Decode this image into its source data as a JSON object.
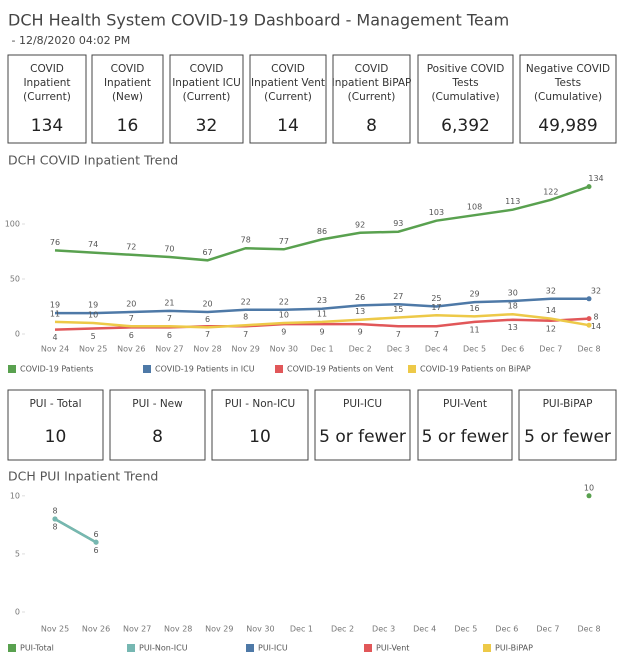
{
  "header": {
    "title": "DCH Health System COVID-19 Dashboard - Management Team",
    "subtitle": " - 12/8/2020 04:02 PM"
  },
  "kpis": [
    {
      "label": [
        "COVID",
        "Inpatient",
        "(Current)"
      ],
      "value": "134"
    },
    {
      "label": [
        "COVID",
        "Inpatient",
        "(New)"
      ],
      "value": "16"
    },
    {
      "label": [
        "COVID",
        "Inpatient ICU",
        "(Current)"
      ],
      "value": "32"
    },
    {
      "label": [
        "COVID",
        "Inpatient Vent",
        "(Current)"
      ],
      "value": "14"
    },
    {
      "label": [
        "COVID",
        "Inpatient BiPAP",
        "(Current)"
      ],
      "value": "8"
    },
    {
      "label": [
        "Positive COVID",
        "Tests",
        "(Cumulative)"
      ],
      "value": "6,392"
    },
    {
      "label": [
        "Negative COVID",
        "Tests",
        "(Cumulative)"
      ],
      "value": "49,989"
    }
  ],
  "pui_kpis": [
    {
      "label": "PUI - Total",
      "value": "10"
    },
    {
      "label": "PUI - New",
      "value": "8"
    },
    {
      "label": "PUI - Non-ICU",
      "value": "10"
    },
    {
      "label": "PUI-ICU",
      "value": "5 or fewer"
    },
    {
      "label": "PUI-Vent",
      "value": "5 or fewer"
    },
    {
      "label": "PUI-BiPAP",
      "value": "5 or fewer"
    }
  ],
  "chart_data": [
    {
      "type": "line",
      "title": "DCH COVID Inpatient Trend",
      "categories": [
        "Nov 24",
        "Nov 25",
        "Nov 26",
        "Nov 27",
        "Nov 28",
        "Nov 29",
        "Nov 30",
        "Dec 1",
        "Dec 2",
        "Dec 3",
        "Dec 4",
        "Dec 5",
        "Dec 6",
        "Dec 7",
        "Dec 8"
      ],
      "series": [
        {
          "name": "COVID-19 Patients",
          "color": "#59a14f",
          "values": [
            76,
            74,
            72,
            70,
            67,
            78,
            77,
            86,
            92,
            93,
            103,
            108,
            113,
            122,
            134
          ]
        },
        {
          "name": "COVID-19 Patients in ICU",
          "color": "#4e79a7",
          "values": [
            19,
            19,
            20,
            21,
            20,
            22,
            22,
            23,
            26,
            27,
            25,
            29,
            30,
            32,
            32
          ]
        },
        {
          "name": "COVID-19 Patients on Vent",
          "color": "#e15759",
          "values": [
            4,
            5,
            6,
            6,
            7,
            7,
            9,
            9,
            9,
            7,
            7,
            11,
            13,
            12,
            14
          ]
        },
        {
          "name": "COVID-19 Patients on BiPAP",
          "color": "#edc948",
          "values": [
            11,
            10,
            7,
            7,
            6,
            8,
            10,
            11,
            13,
            15,
            17,
            16,
            18,
            14,
            8
          ]
        }
      ],
      "ylim": [
        0,
        140
      ],
      "yticks": [
        0,
        50,
        100
      ],
      "markers": false
    },
    {
      "type": "line",
      "title": "DCH PUI Inpatient Trend",
      "categories": [
        "Nov 25",
        "Nov 26",
        "Nov 27",
        "Nov 28",
        "Nov 29",
        "Nov 30",
        "Dec 1",
        "Dec 2",
        "Dec 3",
        "Dec 4",
        "Dec 5",
        "Dec 6",
        "Dec 7",
        "Dec 8"
      ],
      "series": [
        {
          "name": "PUI-Total",
          "color": "#59a14f",
          "values": [
            8,
            6,
            null,
            null,
            null,
            null,
            null,
            null,
            null,
            null,
            null,
            null,
            null,
            10
          ]
        },
        {
          "name": "PUI-Non-ICU",
          "color": "#76b7b2",
          "values": [
            8,
            6,
            null,
            null,
            null,
            null,
            null,
            null,
            null,
            null,
            null,
            null,
            null,
            null
          ]
        },
        {
          "name": "PUI-ICU",
          "color": "#4e79a7",
          "values": [
            null,
            null,
            null,
            null,
            null,
            null,
            null,
            null,
            null,
            null,
            null,
            null,
            null,
            null
          ]
        },
        {
          "name": "PUI-Vent",
          "color": "#e15759",
          "values": [
            null,
            null,
            null,
            null,
            null,
            null,
            null,
            null,
            null,
            null,
            null,
            null,
            null,
            null
          ]
        },
        {
          "name": "PUI-BiPAP",
          "color": "#edc948",
          "values": [
            null,
            null,
            null,
            null,
            null,
            null,
            null,
            null,
            null,
            null,
            null,
            null,
            null,
            null
          ]
        }
      ],
      "ylim": [
        0,
        10.5
      ],
      "yticks": [
        0,
        5,
        10
      ],
      "markers": true
    }
  ]
}
